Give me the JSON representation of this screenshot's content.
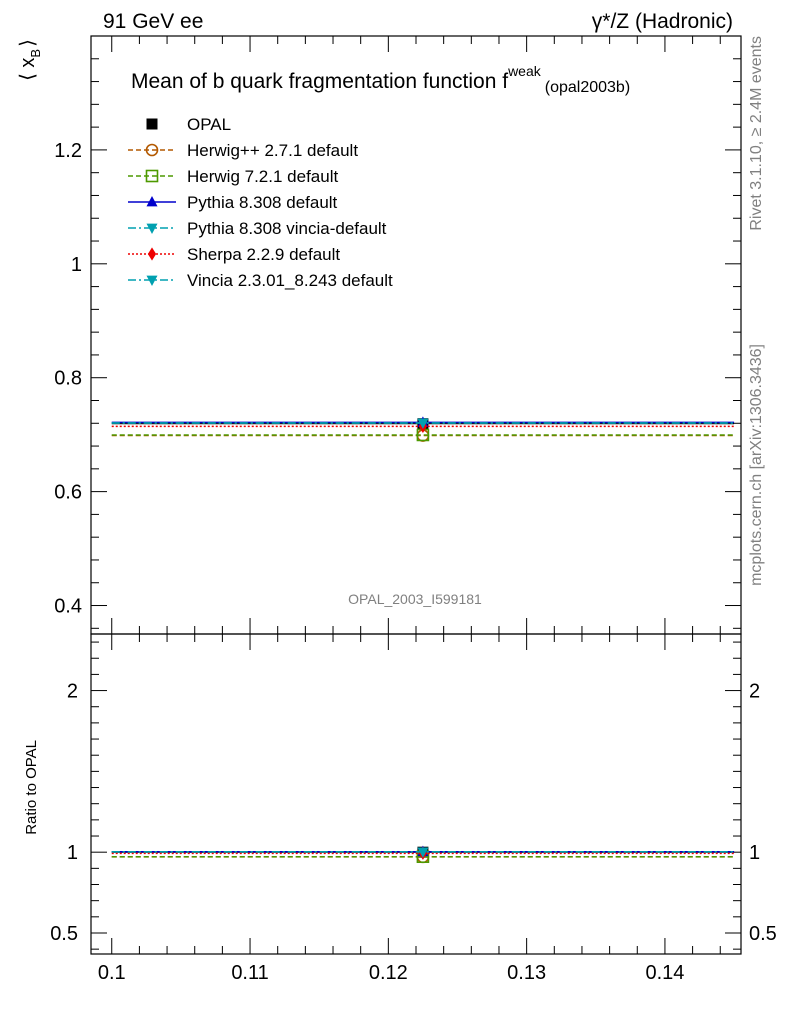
{
  "header": {
    "left_label": "91 GeV ee",
    "right_label": "γ*/Z (Hadronic)"
  },
  "side": {
    "rivet": "Rivet 3.1.10, ≥ 2.4M events",
    "mcplots": "mcplots.cern.ch [arXiv:1306.3436]"
  },
  "chart_data": [
    {
      "type": "line",
      "title": "Mean of b quark fragmentation function f",
      "title_superscript": "weak",
      "title_suffix": "(opal2003b)",
      "watermark": "OPAL_2003_I599181",
      "ylabel_main": "⟨ x",
      "ylabel_sub": "B",
      "ylabel_close": "⟩",
      "xlim": [
        0.0985,
        0.1455
      ],
      "ylim": [
        0.35,
        1.4
      ],
      "xticks": [
        0.1,
        0.11,
        0.12,
        0.13,
        0.14
      ],
      "xtick_labels": [
        "0.1",
        "0.11",
        "0.12",
        "0.13",
        "0.14"
      ],
      "yticks": [
        0.4,
        0.6,
        0.8,
        1.0,
        1.2
      ],
      "ytick_labels": [
        "0.4",
        "0.6",
        "0.8",
        "1",
        "1.2"
      ],
      "x_range": [
        0.1,
        0.145
      ],
      "x_marker": 0.1225,
      "legend_position": "top-left",
      "series": [
        {
          "name": "OPAL",
          "value": 0.7193,
          "color": "#000000",
          "marker": "square",
          "dash": "none",
          "line": false
        },
        {
          "name": "Herwig++ 2.7.1 default",
          "value": 0.6985,
          "color": "#b35900",
          "marker": "circle-open",
          "dash": "5,3"
        },
        {
          "name": "Herwig 7.2.1 default",
          "value": 0.6995,
          "color": "#4d9900",
          "marker": "square-open",
          "dash": "5,3"
        },
        {
          "name": "Pythia 8.308 default",
          "value": 0.7215,
          "color": "#0000cc",
          "marker": "triangle-up",
          "dash": "none"
        },
        {
          "name": "Pythia 8.308 vincia-default",
          "value": 0.7205,
          "color": "#00a0b0",
          "marker": "triangle-down",
          "dash": "8,3,2,3"
        },
        {
          "name": "Sherpa 2.2.9 default",
          "value": 0.7145,
          "color": "#ee0000",
          "marker": "diamond",
          "dash": "2,2"
        },
        {
          "name": "Vincia 2.3.01_8.243 default",
          "value": 0.7205,
          "color": "#00a0b0",
          "marker": "triangle-down",
          "dash": "8,3,2,3"
        }
      ]
    },
    {
      "type": "line",
      "ylabel": "Ratio to OPAL",
      "xlim": [
        0.0985,
        0.1455
      ],
      "ylim": [
        0.37,
        2.35
      ],
      "yticks": [
        0.5,
        1,
        2
      ],
      "ytick_labels": [
        "0.5",
        "1",
        "2"
      ],
      "ratios": [
        1.0,
        0.971,
        0.972,
        1.003,
        1.002,
        0.993,
        1.002
      ]
    }
  ]
}
